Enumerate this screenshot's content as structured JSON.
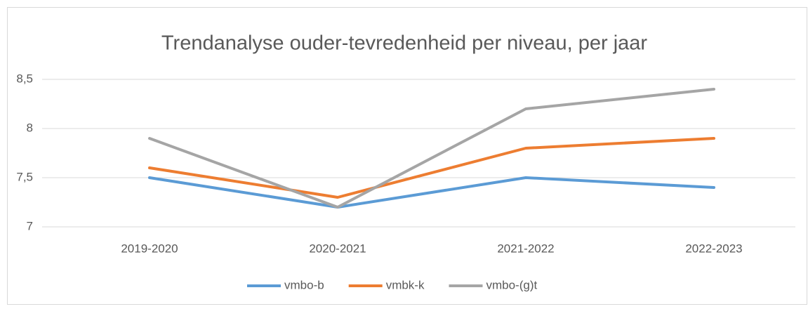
{
  "chart_data": {
    "type": "line",
    "title": "Trendanalyse ouder-tevredenheid per niveau, per jaar",
    "categories": [
      "2019-2020",
      "2020-2021",
      "2021-2022",
      "2022-2023"
    ],
    "series": [
      {
        "name": "vmbo-b",
        "color": "#5b9bd5",
        "values": [
          7.5,
          7.2,
          7.5,
          7.4
        ]
      },
      {
        "name": "vmbk-k",
        "color": "#ed7d31",
        "values": [
          7.6,
          7.3,
          7.8,
          7.9
        ]
      },
      {
        "name": "vmbo-(g)t",
        "color": "#a5a5a5",
        "values": [
          7.9,
          7.2,
          8.2,
          8.4
        ]
      }
    ],
    "ylim": [
      7,
      8.5
    ],
    "yticks": [
      7,
      {
        "value": 7.5,
        "label": "7,5"
      },
      8,
      {
        "value": 8.5,
        "label": "8,5"
      }
    ],
    "grid": true,
    "legend": "bottom"
  }
}
